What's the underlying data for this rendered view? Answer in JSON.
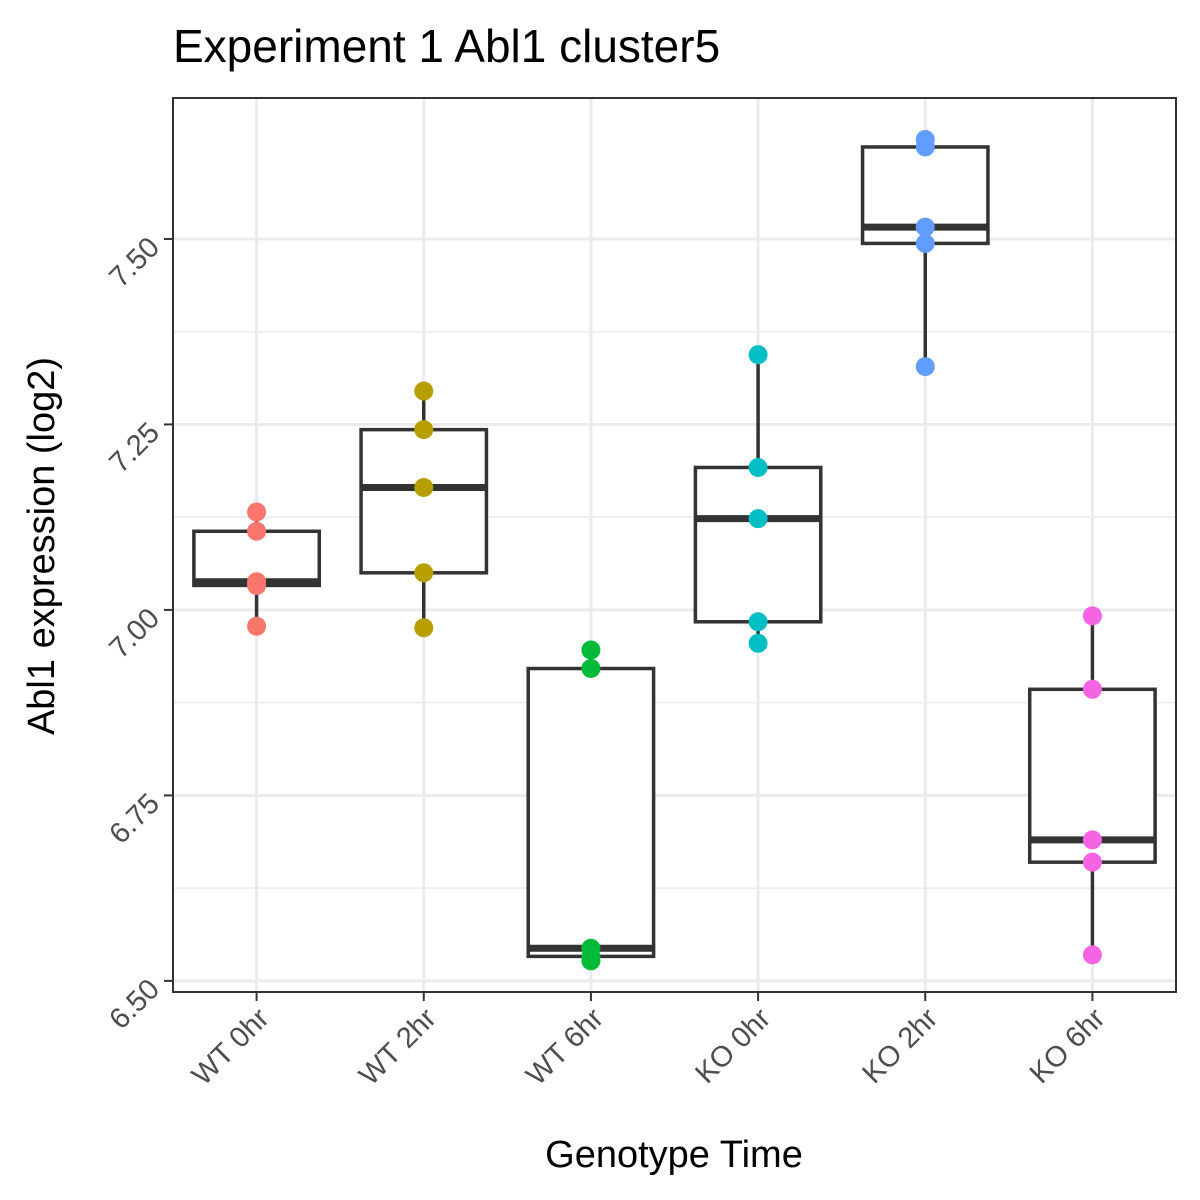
{
  "chart_data": {
    "type": "box",
    "title": "Experiment 1 Abl1 cluster5",
    "xlabel": "Genotype Time",
    "ylabel": "Abl1 expression (log2)",
    "ylim": [
      6.485,
      7.69
    ],
    "yticks": [
      "6.50",
      "6.75",
      "7.00",
      "7.25",
      "7.50"
    ],
    "categories": [
      "WT 0hr",
      "WT 2hr",
      "WT 6hr",
      "KO 0hr",
      "KO 2hr",
      "KO 6hr"
    ],
    "colors": [
      "#F8766D",
      "#B79F00",
      "#00BA38",
      "#00BFC4",
      "#619CFF",
      "#F564E3"
    ],
    "grid": true,
    "legend": "none",
    "series": [
      {
        "category": "WT 0hr",
        "points": [
          6.978,
          7.033,
          7.038,
          7.106,
          7.132
        ],
        "box": {
          "min": 6.978,
          "q1": 7.033,
          "median": 7.038,
          "q3": 7.106,
          "max": 7.132
        }
      },
      {
        "category": "WT 2hr",
        "points": [
          6.976,
          7.05,
          7.165,
          7.243,
          7.295
        ],
        "box": {
          "min": 6.976,
          "q1": 7.05,
          "median": 7.165,
          "q3": 7.243,
          "max": 7.295
        }
      },
      {
        "category": "WT 6hr",
        "points": [
          6.527,
          6.533,
          6.544,
          6.921,
          6.946
        ],
        "box": {
          "min": 6.527,
          "q1": 6.533,
          "median": 6.544,
          "q3": 6.921,
          "max": 6.946
        }
      },
      {
        "category": "KO 0hr",
        "points": [
          6.955,
          6.984,
          7.123,
          7.192,
          7.344
        ],
        "box": {
          "min": 6.955,
          "q1": 6.984,
          "median": 7.123,
          "q3": 7.192,
          "max": 7.344
        }
      },
      {
        "category": "KO 2hr",
        "points": [
          7.328,
          7.494,
          7.516,
          7.624,
          7.634
        ],
        "box": {
          "min": 7.328,
          "q1": 7.494,
          "median": 7.516,
          "q3": 7.624,
          "max": 7.634
        }
      },
      {
        "category": "KO 6hr",
        "points": [
          6.535,
          6.66,
          6.69,
          6.893,
          6.992
        ],
        "box": {
          "min": 6.535,
          "q1": 6.66,
          "median": 6.69,
          "q3": 6.893,
          "max": 6.992
        }
      }
    ]
  }
}
